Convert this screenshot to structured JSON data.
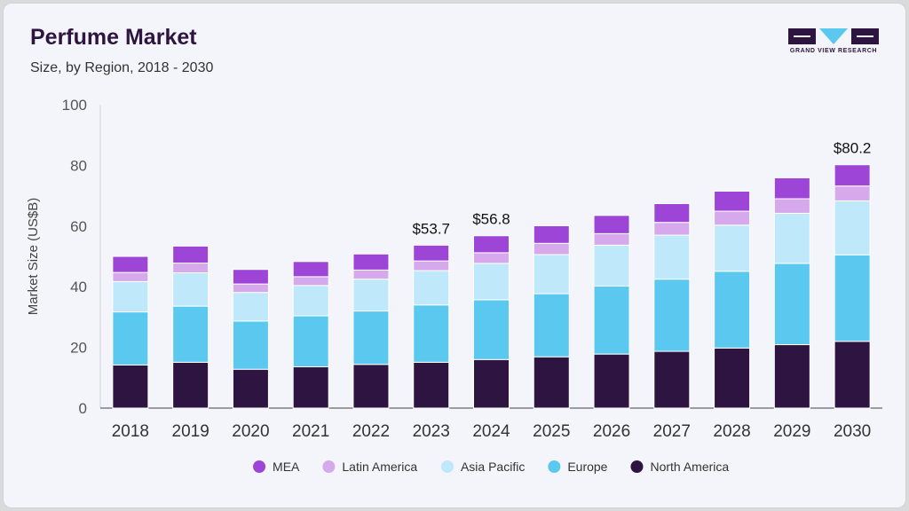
{
  "header": {
    "title": "Perfume Market",
    "subtitle": "Size, by Region, 2018 - 2030"
  },
  "logo": {
    "text": "GRAND VIEW RESEARCH",
    "color": "#2e1440",
    "accent": "#5bc8f0"
  },
  "chart_data": {
    "type": "bar",
    "stacked": true,
    "title": "Perfume Market",
    "subtitle": "Size, by Region, 2018 - 2030",
    "xlabel": "",
    "ylabel": "Market Size (US$B)",
    "ylim": [
      0,
      100
    ],
    "yticks": [
      0,
      20,
      40,
      60,
      80,
      100
    ],
    "grid": false,
    "legend_position": "bottom",
    "categories": [
      "2018",
      "2019",
      "2020",
      "2021",
      "2022",
      "2023",
      "2024",
      "2025",
      "2026",
      "2027",
      "2028",
      "2029",
      "2030"
    ],
    "series": [
      {
        "name": "North America",
        "color": "#2e1440",
        "values": [
          14.2,
          15.1,
          12.8,
          13.6,
          14.4,
          15.1,
          16.0,
          16.9,
          17.8,
          18.7,
          19.8,
          20.9,
          22.0
        ]
      },
      {
        "name": "Europe",
        "color": "#5bc8f0",
        "values": [
          17.5,
          18.5,
          15.9,
          16.8,
          17.6,
          18.9,
          19.7,
          20.8,
          22.4,
          23.8,
          25.3,
          26.8,
          28.5
        ]
      },
      {
        "name": "Asia Pacific",
        "color": "#bfe8fa",
        "values": [
          10.0,
          11.0,
          9.4,
          10.0,
          10.5,
          11.3,
          12.0,
          12.9,
          13.5,
          14.5,
          15.2,
          16.5,
          17.8
        ]
      },
      {
        "name": "Latin America",
        "color": "#d6a8ec",
        "values": [
          3.0,
          3.2,
          2.8,
          2.9,
          3.0,
          3.2,
          3.5,
          3.7,
          3.8,
          4.2,
          4.6,
          4.8,
          4.9
        ]
      },
      {
        "name": "MEA",
        "color": "#9c45d6",
        "values": [
          5.3,
          5.6,
          4.8,
          5.0,
          5.3,
          5.2,
          5.6,
          5.8,
          6.0,
          6.2,
          6.6,
          6.9,
          7.0
        ]
      }
    ],
    "legend_order": [
      "MEA",
      "Latin America",
      "Asia Pacific",
      "Europe",
      "North America"
    ],
    "annotations": [
      {
        "category": "2023",
        "text": "$53.7"
      },
      {
        "category": "2024",
        "text": "$56.8"
      },
      {
        "category": "2030",
        "text": "$80.2"
      }
    ]
  }
}
